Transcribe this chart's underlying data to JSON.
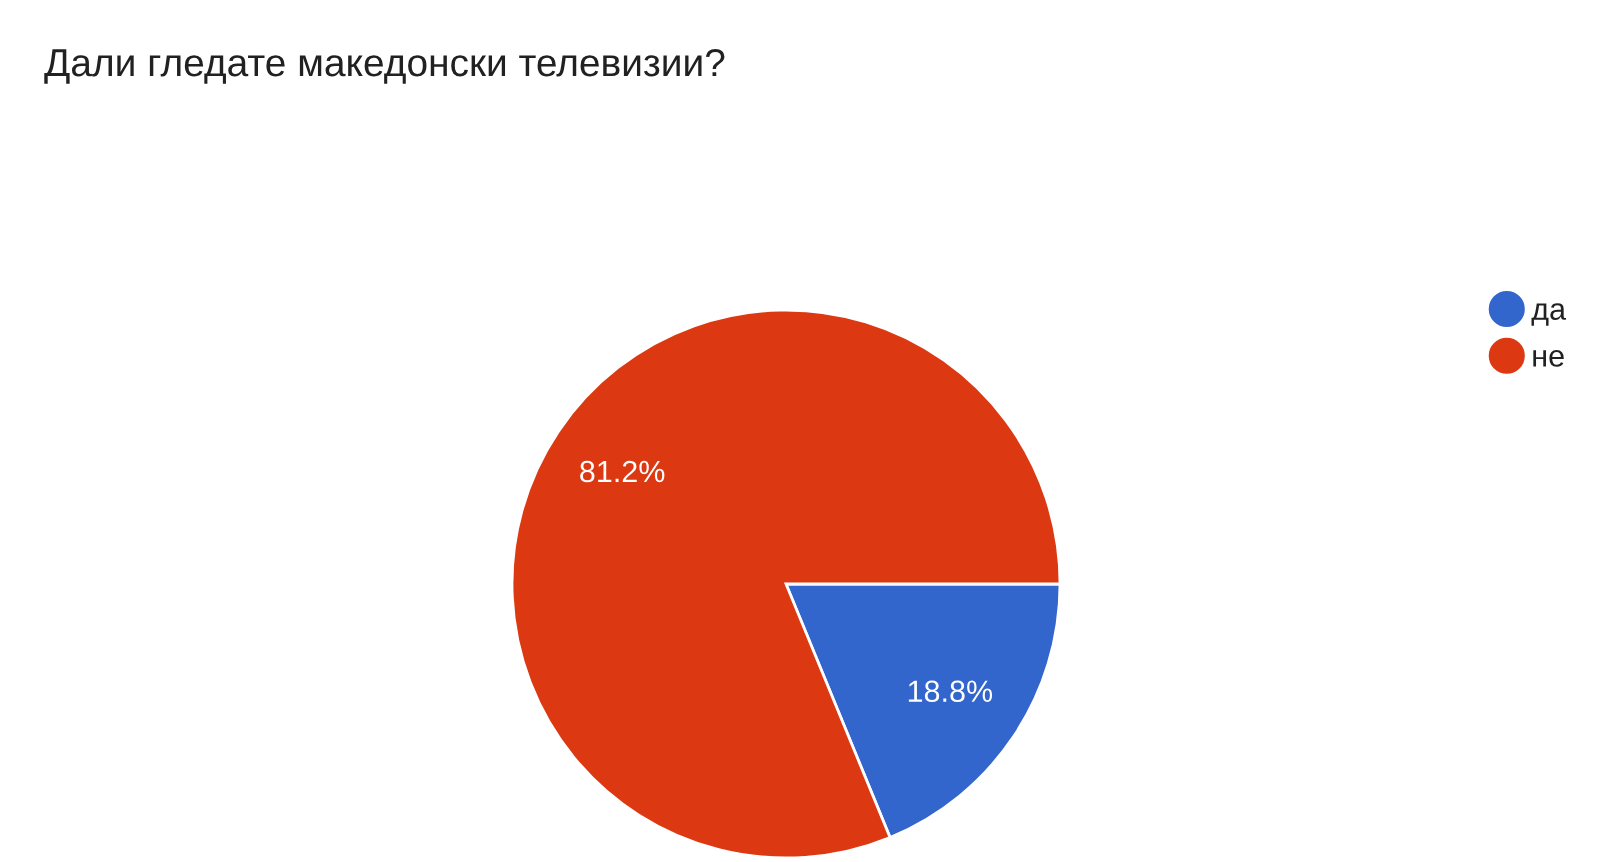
{
  "chart_data": {
    "type": "pie",
    "title": "Дали гледате македонски телевизии?",
    "categories": [
      "да",
      "не"
    ],
    "values": [
      18.8,
      81.2
    ],
    "colors": [
      "#3366cc",
      "#dc3912"
    ],
    "value_labels": [
      "18.8%",
      "81.2%"
    ],
    "legend": "right"
  }
}
